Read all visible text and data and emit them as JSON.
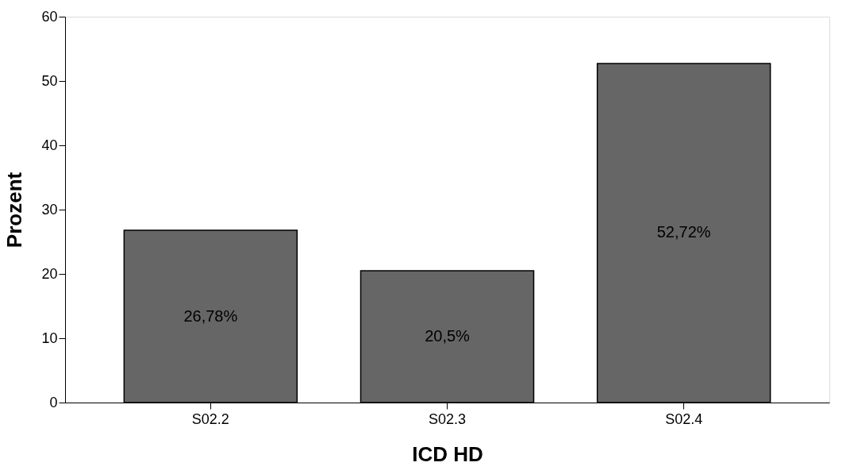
{
  "chart_data": {
    "type": "bar",
    "xlabel": "ICD HD",
    "ylabel": "Prozent",
    "categories": [
      "S02.2",
      "S02.3",
      "S02.4"
    ],
    "values": [
      26.78,
      20.5,
      52.72
    ],
    "value_labels": [
      "26,78%",
      "20,5%",
      "52,72%"
    ],
    "color": "#666666",
    "ylim": [
      0,
      60
    ],
    "yticks": [
      0,
      10,
      20,
      30,
      40,
      50,
      60
    ],
    "grid": false
  }
}
